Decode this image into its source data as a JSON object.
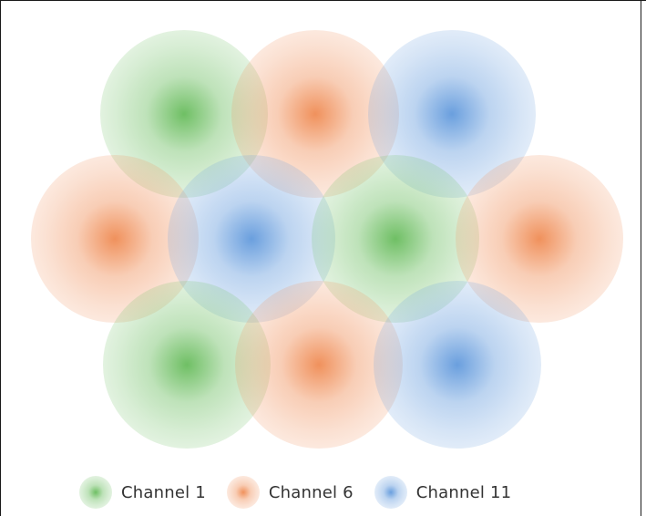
{
  "diagram": {
    "channels": [
      {
        "id": "ch1",
        "label": "Channel 1",
        "color": "#6fbf64"
      },
      {
        "id": "ch6",
        "label": "Channel 6",
        "color": "#f0915c"
      },
      {
        "id": "ch11",
        "label": "Channel 11",
        "color": "#6a9fde"
      }
    ],
    "cells": [
      {
        "channel": "ch1"
      },
      {
        "channel": "ch6"
      },
      {
        "channel": "ch11"
      },
      {
        "channel": "ch6"
      },
      {
        "channel": "ch11"
      },
      {
        "channel": "ch1"
      },
      {
        "channel": "ch6"
      },
      {
        "channel": "ch1"
      },
      {
        "channel": "ch6"
      },
      {
        "channel": "ch11"
      }
    ]
  },
  "legend": {
    "items": [
      {
        "channel": "ch1",
        "label": "Channel 1"
      },
      {
        "channel": "ch6",
        "label": "Channel 6"
      },
      {
        "channel": "ch11",
        "label": "Channel 11"
      }
    ]
  }
}
